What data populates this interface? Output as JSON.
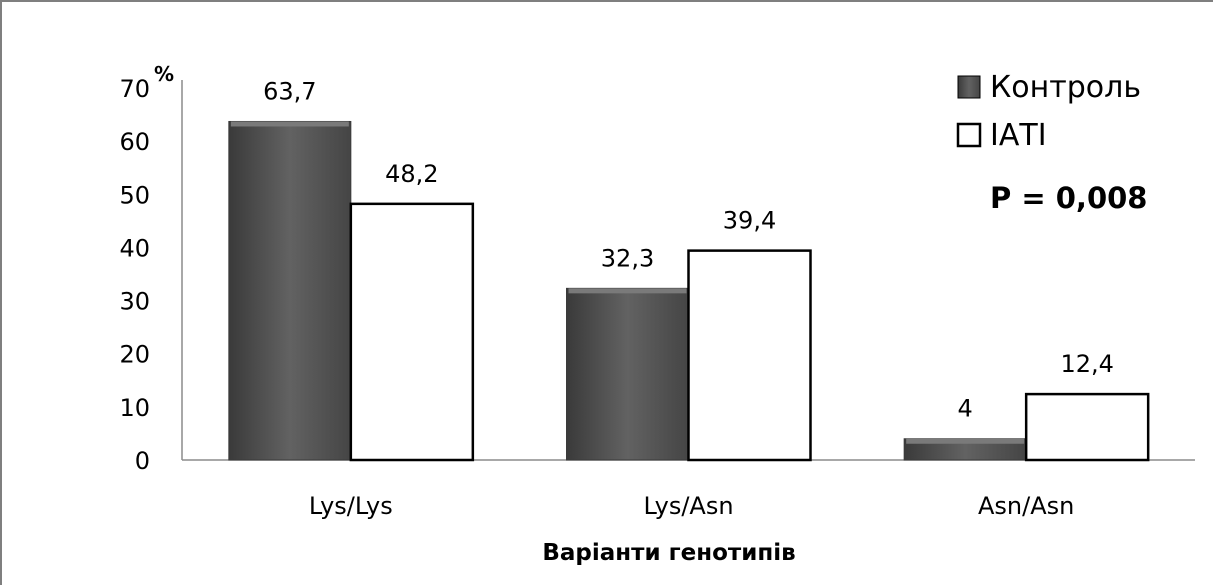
{
  "chart_data": {
    "type": "bar",
    "categories": [
      "Lys/Lys",
      "Lys/Asn",
      "Asn/Asn"
    ],
    "series": [
      {
        "name": "Контроль",
        "values": [
          63.7,
          32.3,
          4
        ],
        "labels": [
          "63,7",
          "32,3",
          "4"
        ],
        "color": "#5a5a5a"
      },
      {
        "name": "ІАТІ",
        "values": [
          48.2,
          39.4,
          12.4
        ],
        "labels": [
          "48,2",
          "39,4",
          "12,4"
        ],
        "color": "#ffffff"
      }
    ],
    "ylabel": "%",
    "xlabel": "Варіанти генотипів",
    "ylim": [
      0,
      70
    ],
    "yticks": [
      0,
      10,
      20,
      30,
      40,
      50,
      60,
      70
    ],
    "annotation": "P = 0,008",
    "grid": false,
    "legend_position": "top-right"
  }
}
